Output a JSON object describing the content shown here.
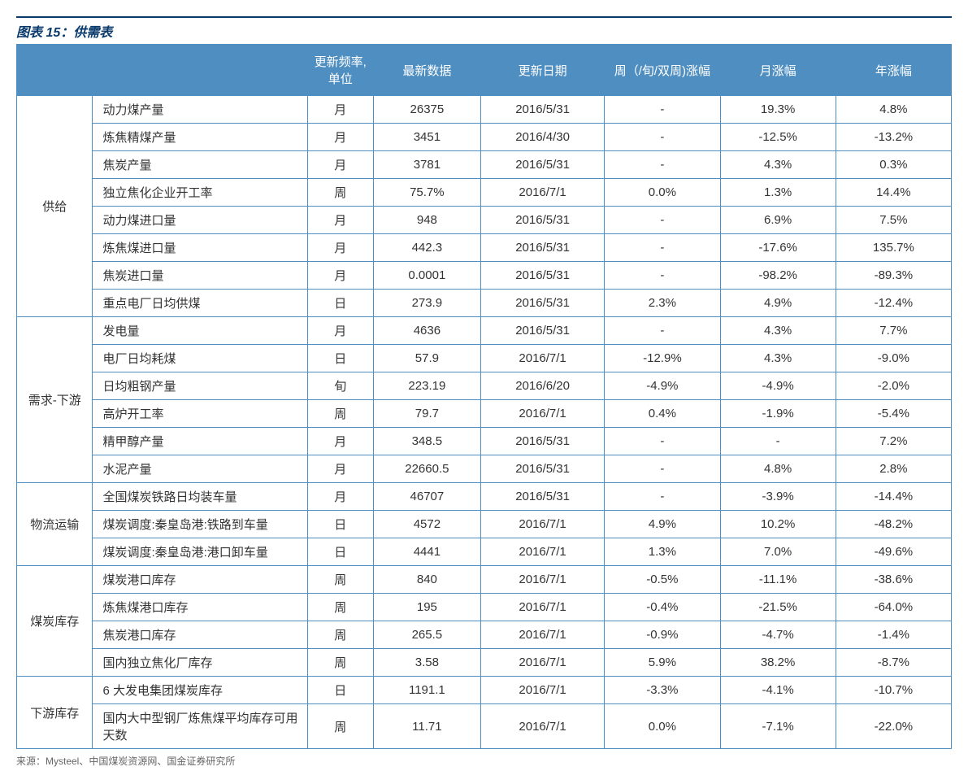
{
  "title": "图表 15：供需表",
  "source": "来源：Mysteel、中国煤炭资源网、国金证券研究所",
  "headers": {
    "cat": "",
    "indicator": "",
    "freq": "更新频率,单位",
    "latest": "最新数据",
    "date": "更新日期",
    "weekly": "周（/旬/双周)涨幅",
    "monthly": "月涨幅",
    "yearly": "年涨幅"
  },
  "groups": [
    {
      "name": "供给",
      "rows": [
        {
          "indicator": "动力煤产量",
          "freq": "月",
          "latest": "26375",
          "date": "2016/5/31",
          "weekly": "-",
          "monthly": "19.3%",
          "yearly": "4.8%"
        },
        {
          "indicator": "炼焦精煤产量",
          "freq": "月",
          "latest": "3451",
          "date": "2016/4/30",
          "weekly": "-",
          "monthly": "-12.5%",
          "yearly": "-13.2%"
        },
        {
          "indicator": "焦炭产量",
          "freq": "月",
          "latest": "3781",
          "date": "2016/5/31",
          "weekly": "-",
          "monthly": "4.3%",
          "yearly": "0.3%"
        },
        {
          "indicator": "独立焦化企业开工率",
          "freq": "周",
          "latest": "75.7%",
          "date": "2016/7/1",
          "weekly": "0.0%",
          "monthly": "1.3%",
          "yearly": "14.4%"
        },
        {
          "indicator": "动力煤进口量",
          "freq": "月",
          "latest": "948",
          "date": "2016/5/31",
          "weekly": "-",
          "monthly": "6.9%",
          "yearly": "7.5%"
        },
        {
          "indicator": "炼焦煤进口量",
          "freq": "月",
          "latest": "442.3",
          "date": "2016/5/31",
          "weekly": "-",
          "monthly": "-17.6%",
          "yearly": "135.7%"
        },
        {
          "indicator": "焦炭进口量",
          "freq": "月",
          "latest": "0.0001",
          "date": "2016/5/31",
          "weekly": "-",
          "monthly": "-98.2%",
          "yearly": "-89.3%"
        },
        {
          "indicator": "重点电厂日均供煤",
          "freq": "日",
          "latest": "273.9",
          "date": "2016/5/31",
          "weekly": "2.3%",
          "monthly": "4.9%",
          "yearly": "-12.4%"
        }
      ]
    },
    {
      "name": "需求-下游",
      "rows": [
        {
          "indicator": "发电量",
          "freq": "月",
          "latest": "4636",
          "date": "2016/5/31",
          "weekly": "-",
          "monthly": "4.3%",
          "yearly": "7.7%"
        },
        {
          "indicator": "电厂日均耗煤",
          "freq": "日",
          "latest": "57.9",
          "date": "2016/7/1",
          "weekly": "-12.9%",
          "monthly": "4.3%",
          "yearly": "-9.0%"
        },
        {
          "indicator": "日均粗钢产量",
          "freq": "旬",
          "latest": "223.19",
          "date": "2016/6/20",
          "weekly": "-4.9%",
          "monthly": "-4.9%",
          "yearly": "-2.0%"
        },
        {
          "indicator": "高炉开工率",
          "freq": "周",
          "latest": "79.7",
          "date": "2016/7/1",
          "weekly": "0.4%",
          "monthly": "-1.9%",
          "yearly": "-5.4%"
        },
        {
          "indicator": "精甲醇产量",
          "freq": "月",
          "latest": "348.5",
          "date": "2016/5/31",
          "weekly": "-",
          "monthly": "-",
          "yearly": "7.2%"
        },
        {
          "indicator": "水泥产量",
          "freq": "月",
          "latest": "22660.5",
          "date": "2016/5/31",
          "weekly": "-",
          "monthly": "4.8%",
          "yearly": "2.8%"
        }
      ]
    },
    {
      "name": "物流运输",
      "rows": [
        {
          "indicator": "全国煤炭铁路日均装车量",
          "freq": "月",
          "latest": "46707",
          "date": "2016/5/31",
          "weekly": "-",
          "monthly": "-3.9%",
          "yearly": "-14.4%"
        },
        {
          "indicator": "煤炭调度:秦皇岛港:铁路到车量",
          "freq": "日",
          "latest": "4572",
          "date": "2016/7/1",
          "weekly": "4.9%",
          "monthly": "10.2%",
          "yearly": "-48.2%"
        },
        {
          "indicator": "煤炭调度:秦皇岛港:港口卸车量",
          "freq": "日",
          "latest": "4441",
          "date": "2016/7/1",
          "weekly": "1.3%",
          "monthly": "7.0%",
          "yearly": "-49.6%"
        }
      ]
    },
    {
      "name": "煤炭库存",
      "rows": [
        {
          "indicator": "煤炭港口库存",
          "freq": "周",
          "latest": "840",
          "date": "2016/7/1",
          "weekly": "-0.5%",
          "monthly": "-11.1%",
          "yearly": "-38.6%"
        },
        {
          "indicator": "炼焦煤港口库存",
          "freq": "周",
          "latest": "195",
          "date": "2016/7/1",
          "weekly": "-0.4%",
          "monthly": "-21.5%",
          "yearly": "-64.0%"
        },
        {
          "indicator": "焦炭港口库存",
          "freq": "周",
          "latest": "265.5",
          "date": "2016/7/1",
          "weekly": "-0.9%",
          "monthly": "-4.7%",
          "yearly": "-1.4%"
        },
        {
          "indicator": "国内独立焦化厂库存",
          "freq": "周",
          "latest": "3.58",
          "date": "2016/7/1",
          "weekly": "5.9%",
          "monthly": "38.2%",
          "yearly": "-8.7%"
        }
      ]
    },
    {
      "name": "下游库存",
      "rows": [
        {
          "indicator": "6 大发电集团煤炭库存",
          "freq": "日",
          "latest": "1191.1",
          "date": "2016/7/1",
          "weekly": "-3.3%",
          "monthly": "-4.1%",
          "yearly": "-10.7%"
        },
        {
          "indicator": "国内大中型钢厂炼焦煤平均库存可用天数",
          "freq": "周",
          "latest": "11.71",
          "date": "2016/7/1",
          "weekly": "0.0%",
          "monthly": "-7.1%",
          "yearly": "-22.0%"
        }
      ]
    }
  ],
  "colors": {
    "header_bg": "#4f8ec0",
    "border": "#4f8ec0",
    "title_rule": "#0a3a6b"
  }
}
